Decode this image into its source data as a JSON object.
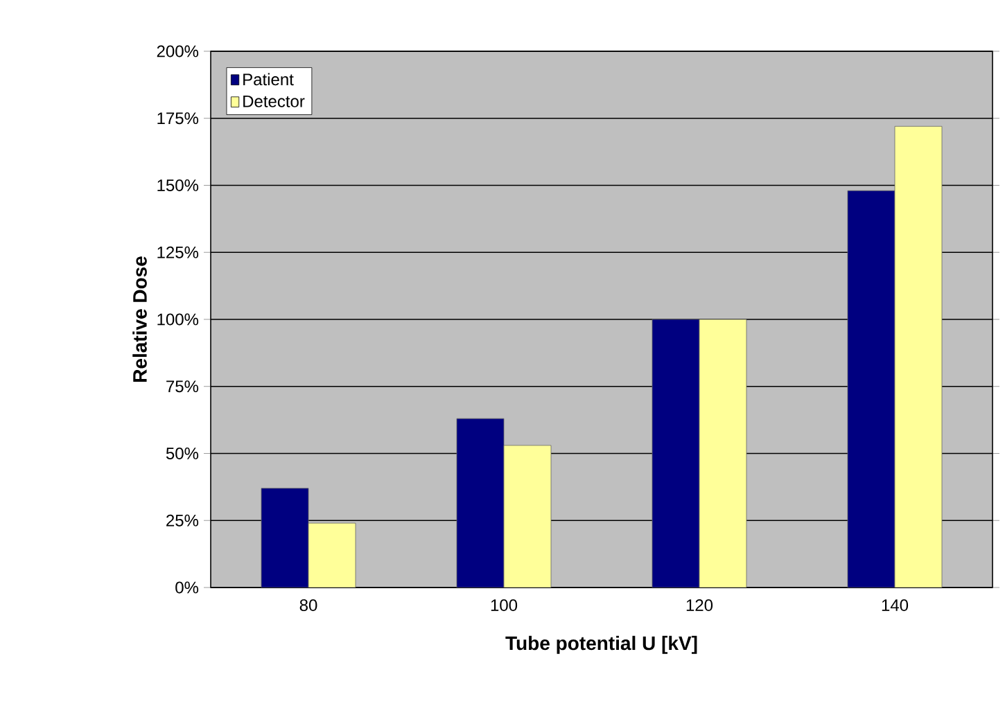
{
  "chart_data": {
    "type": "bar",
    "xlabel": "Tube potential U [kV]",
    "ylabel": "Relative Dose",
    "categories": [
      "80",
      "100",
      "120",
      "140"
    ],
    "series": [
      {
        "name": "Patient",
        "color": "#000080",
        "values": [
          37,
          63,
          100,
          148
        ]
      },
      {
        "name": "Detector",
        "color": "#ffff99",
        "values": [
          24,
          53,
          100,
          172
        ]
      }
    ],
    "ylim": [
      0,
      200
    ],
    "yticks": [
      {
        "value": 0,
        "label": "0%"
      },
      {
        "value": 25,
        "label": "25%"
      },
      {
        "value": 50,
        "label": "50%"
      },
      {
        "value": 75,
        "label": "75%"
      },
      {
        "value": 100,
        "label": "100%"
      },
      {
        "value": 125,
        "label": "125%"
      },
      {
        "value": 150,
        "label": "150%"
      },
      {
        "value": 175,
        "label": "175%"
      },
      {
        "value": 200,
        "label": "200%"
      }
    ],
    "grid": "y",
    "legend": "top left"
  }
}
